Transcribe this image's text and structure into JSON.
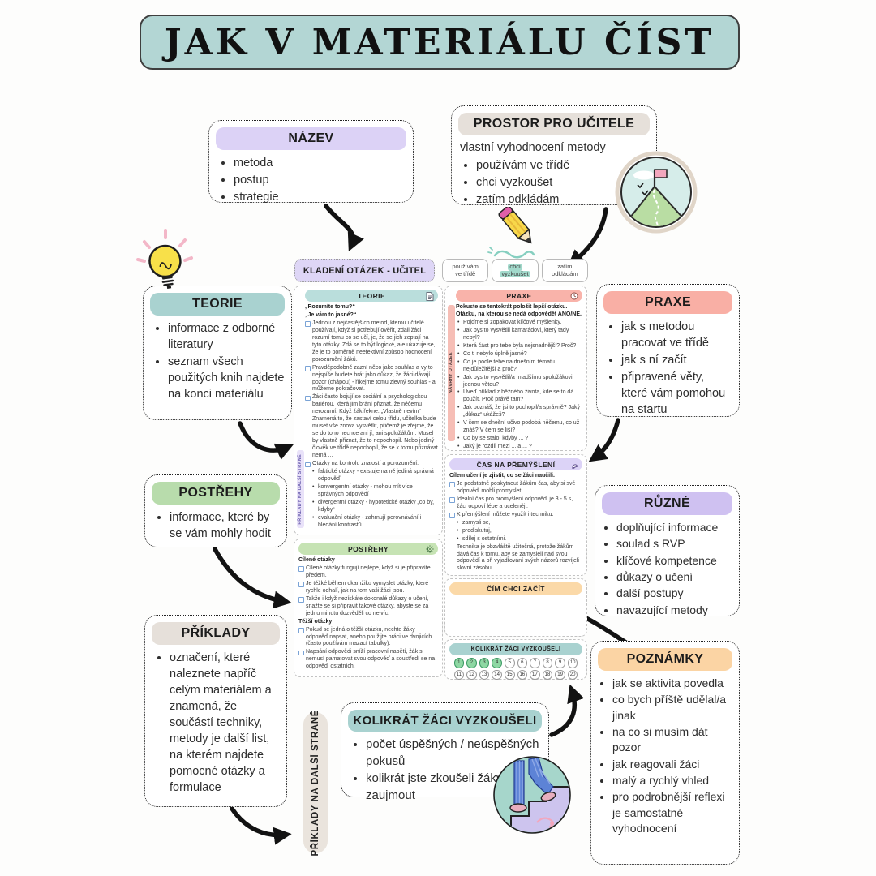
{
  "title": "JAK V MATERIÁLU ČÍST",
  "colors": {
    "teal": "#a9d2d0",
    "lavender": "#dcd2f6",
    "salmon": "#f9afa5",
    "green": "#b8dcac",
    "peach": "#fbd4a4",
    "beige": "#e6e0da",
    "highlight": "#a2d9cb",
    "circle_filled": "#8ed7a3"
  },
  "icons": [
    "lightbulb-icon",
    "pencil-icon",
    "mountain-flag-icon",
    "stairs-climb-icon",
    "document-icon",
    "clock-icon",
    "bell-icon",
    "gear-icon"
  ],
  "callouts": {
    "nazev": {
      "title": "NÁZEV",
      "items": [
        "metoda",
        "postup",
        "strategie"
      ]
    },
    "prostor": {
      "title": "PROSTOR PRO UČITELE",
      "intro": "vlastní vyhodnocení metody",
      "items": [
        "používám ve třídě",
        "chci vyzkoušet",
        "zatím odkládám"
      ]
    },
    "teorie": {
      "title": "TEORIE",
      "items": [
        "informace z odborné literatury",
        "seznam všech použitých knih najdete na konci materiálu"
      ]
    },
    "postrehy": {
      "title": "POSTŘEHY",
      "items": [
        "informace, které by se vám mohly hodit"
      ]
    },
    "priklady": {
      "title": "PŘÍKLADY",
      "items": [
        "označení, které naleznete napříč celým materiálem a znamená, že součástí techniky, metody je další list, na kterém najdete pomocné otázky a formulace"
      ]
    },
    "praxe": {
      "title": "PRAXE",
      "items": [
        "jak s metodou pracovat ve třídě",
        "jak s ní začít",
        "připravené věty, které vám pomohou na startu"
      ]
    },
    "ruzne": {
      "title": "RŮZNÉ",
      "items": [
        "doplňující informace",
        "soulad s RVP",
        "klíčové kompetence",
        "důkazy o učení",
        "další postupy",
        "navazující metody"
      ]
    },
    "poznamky": {
      "title": "POZNÁMKY",
      "items": [
        "jak se aktivita povedla",
        "co bych příště udělal/a jinak",
        "na co si musím dát pozor",
        "jak reagovali žáci",
        "malý a rychlý vhled",
        "pro podrobnější reflexi je samostatné vyhodnocení"
      ]
    },
    "kolikrat": {
      "title": "KOLIKRÁT ŽÁCI VYZKOUŠELI",
      "items": [
        "počet úspěšných / neúspěšných pokusů",
        "kolikrát jste zkoušeli žáky zaujmout"
      ]
    }
  },
  "side_label": "PŘÍKLADY NA DALŠÍ STRANĚ",
  "minipage": {
    "header": "KLADENÍ OTÁZEK - UČITEL",
    "tabs": [
      {
        "line1": "používám",
        "line2": "ve třídě",
        "active": false
      },
      {
        "line1": "chci",
        "line2": "vyzkoušet",
        "active": true
      },
      {
        "line1": "zatím",
        "line2": "odkládám",
        "active": false
      }
    ],
    "teorie": {
      "title": "TEORIE",
      "side_label": "PŘÍKLADY NA DALŠÍ STRANĚ",
      "blocks": [
        {
          "style": "bold",
          "text": "„Rozumíte tomu?“"
        },
        {
          "style": "bold",
          "text": "„Je vám to jasné?“"
        },
        {
          "style": "check",
          "text": "Jednou z nejčastějších metod, kterou učitelé používají, když si potřebují ověřit, zdali žáci rozumí tomu co se učí, je, že se jich zeptají na tyto otázky. Zdá se to být logické, ale ukazuje se, že je to poměrně neefektivní způsob hodnocení porozumění žáků."
        },
        {
          "style": "check",
          "text": "Pravděpodobně zazní něco jako souhlas a vy to nejspíše budete brát jako důkaz, že žáci dávají pozor (chápou) - říkejme tomu zjevný souhlas - a můžeme pokračovat."
        },
        {
          "style": "check",
          "text": "Žáci často bojují se sociální a psychologickou bariérou, která jim brání přiznat, že něčemu nerozumí. Když žák řekne: „Vlastně nevím“ Znamená to, že zastaví celou třídu, učitelka bude muset vše znova vysvětlit, přičemž je zřejmé, že se do toho nechce ani jí, ani spolužákům. Musel by vlastně přiznat, že to nepochopil. Nebo jediný člověk ve třídě nepochopil, že se k tomu přiznávat nemá ..."
        },
        {
          "style": "check",
          "text": "Otázky na kontrolu znalostí a porozumění:"
        },
        {
          "style": "sub",
          "text": "faktické otázky - existuje na ně jediná správná odpověď"
        },
        {
          "style": "sub",
          "text": "konvergentní otázky - mohou mít více správných odpovědí"
        },
        {
          "style": "sub",
          "text": "divergentní otázky - hypotetické otázky „co by, kdyby“"
        },
        {
          "style": "sub",
          "text": "evaluační otázky - zahrnují porovnávání i hledání kontrastů"
        }
      ]
    },
    "praxe": {
      "title": "PRAXE",
      "side_label": "NÁVRHY OTÁZEK",
      "blocks": [
        {
          "style": "bold",
          "text": "Pokuste se tentokrát položit lepší otázku. Otázku, na kterou se nedá odpovědět ANO/NE."
        },
        {
          "style": "bullet",
          "text": "Pojďme si zopakovat klíčové myšlenky."
        },
        {
          "style": "bullet",
          "text": "Jak bys to vysvětlil kamarádovi, který tady nebyl?"
        },
        {
          "style": "bullet",
          "text": "Která část pro tebe byla nejsnadnější? Proč?"
        },
        {
          "style": "bullet",
          "text": "Co ti nebylo úplně jasné?"
        },
        {
          "style": "bullet",
          "text": "Co je podle tebe na dnešním tématu nejdůležitější a proč?"
        },
        {
          "style": "bullet",
          "text": "Jak bys to vysvětlil/a mladšímu spolužákovi jednou větou?"
        },
        {
          "style": "bullet",
          "text": "Uveď příklad z běžného života, kde se to dá použít. Proč právě tam?"
        },
        {
          "style": "bullet",
          "text": "Jak poznáš, že jsi to pochopil/a správně? Jaký „důkaz“ ukážeš?"
        },
        {
          "style": "bullet",
          "text": "V čem se dnešní učivo podobá něčemu, co už znáš? V čem se liší?"
        },
        {
          "style": "bullet",
          "text": "Co by se stalo, kdyby ... ?"
        },
        {
          "style": "bullet",
          "text": "Jaký je rozdíl mezi ... a ... ?"
        }
      ]
    },
    "cas": {
      "title": "ČAS NA PŘEMÝŠLENÍ",
      "blocks": [
        {
          "style": "bold",
          "text": "Cílem učení je zjistit, co se žáci naučili."
        },
        {
          "style": "check",
          "text": "Je podstatné poskytnout žákům čas, aby si své odpovědi mohli promyslet."
        },
        {
          "style": "check",
          "text": "Ideální čas pro promyšlení odpovědi je 3 - 5 s, žáci odpoví lépe a uceleněji."
        },
        {
          "style": "check",
          "text": "K přemýšlení můžete využít i techniku:"
        },
        {
          "style": "sub",
          "text": "zamysli se,"
        },
        {
          "style": "sub",
          "text": "prodiskutuj,"
        },
        {
          "style": "sub",
          "text": "sdílej s ostatními."
        },
        {
          "style": "plain",
          "text": "Technika je obzvláště užitečná, protože žákům dává čas k tomu, aby se zamysleli nad svou odpovědí a při vyjadřování svých názorů rozvíjeli slovní zásobu."
        }
      ]
    },
    "postrehy": {
      "title": "POSTŘEHY",
      "blocks": [
        {
          "style": "bold",
          "text": "Cílené otázky"
        },
        {
          "style": "check",
          "text": "Cílené otázky fungují nejlépe, když si je připravíte předem."
        },
        {
          "style": "check",
          "text": "Je těžké během okamžiku vymyslet otázky, které rychle odhalí, jak na tom vaši žáci jsou."
        },
        {
          "style": "check",
          "text": "Takže i když nezískáte dokonalé důkazy o učení, snažte se si připravit takové otázky, abyste se za jednu minutu dozvěděli co nejvíc."
        },
        {
          "style": "bold",
          "text": "Těžší otázky"
        },
        {
          "style": "check",
          "text": "Pokud se jedná o těžší otázku, nechte žáky odpověď napsat, anebo použijte práci ve dvojicích (často používám mazací tabulky)."
        },
        {
          "style": "check",
          "text": "Napsání odpovědi sníží pracovní napětí, žák si nemusí pamatovat svou odpověď a soustředí se na odpovědi ostatních."
        }
      ]
    },
    "cim": {
      "title": "ČÍM CHCI ZAČÍT"
    },
    "kolikrat": {
      "title": "KOLIKRÁT ŽÁCI VYZKOUŠELI",
      "total": 20,
      "checked": [
        1,
        2,
        3,
        4
      ]
    }
  }
}
